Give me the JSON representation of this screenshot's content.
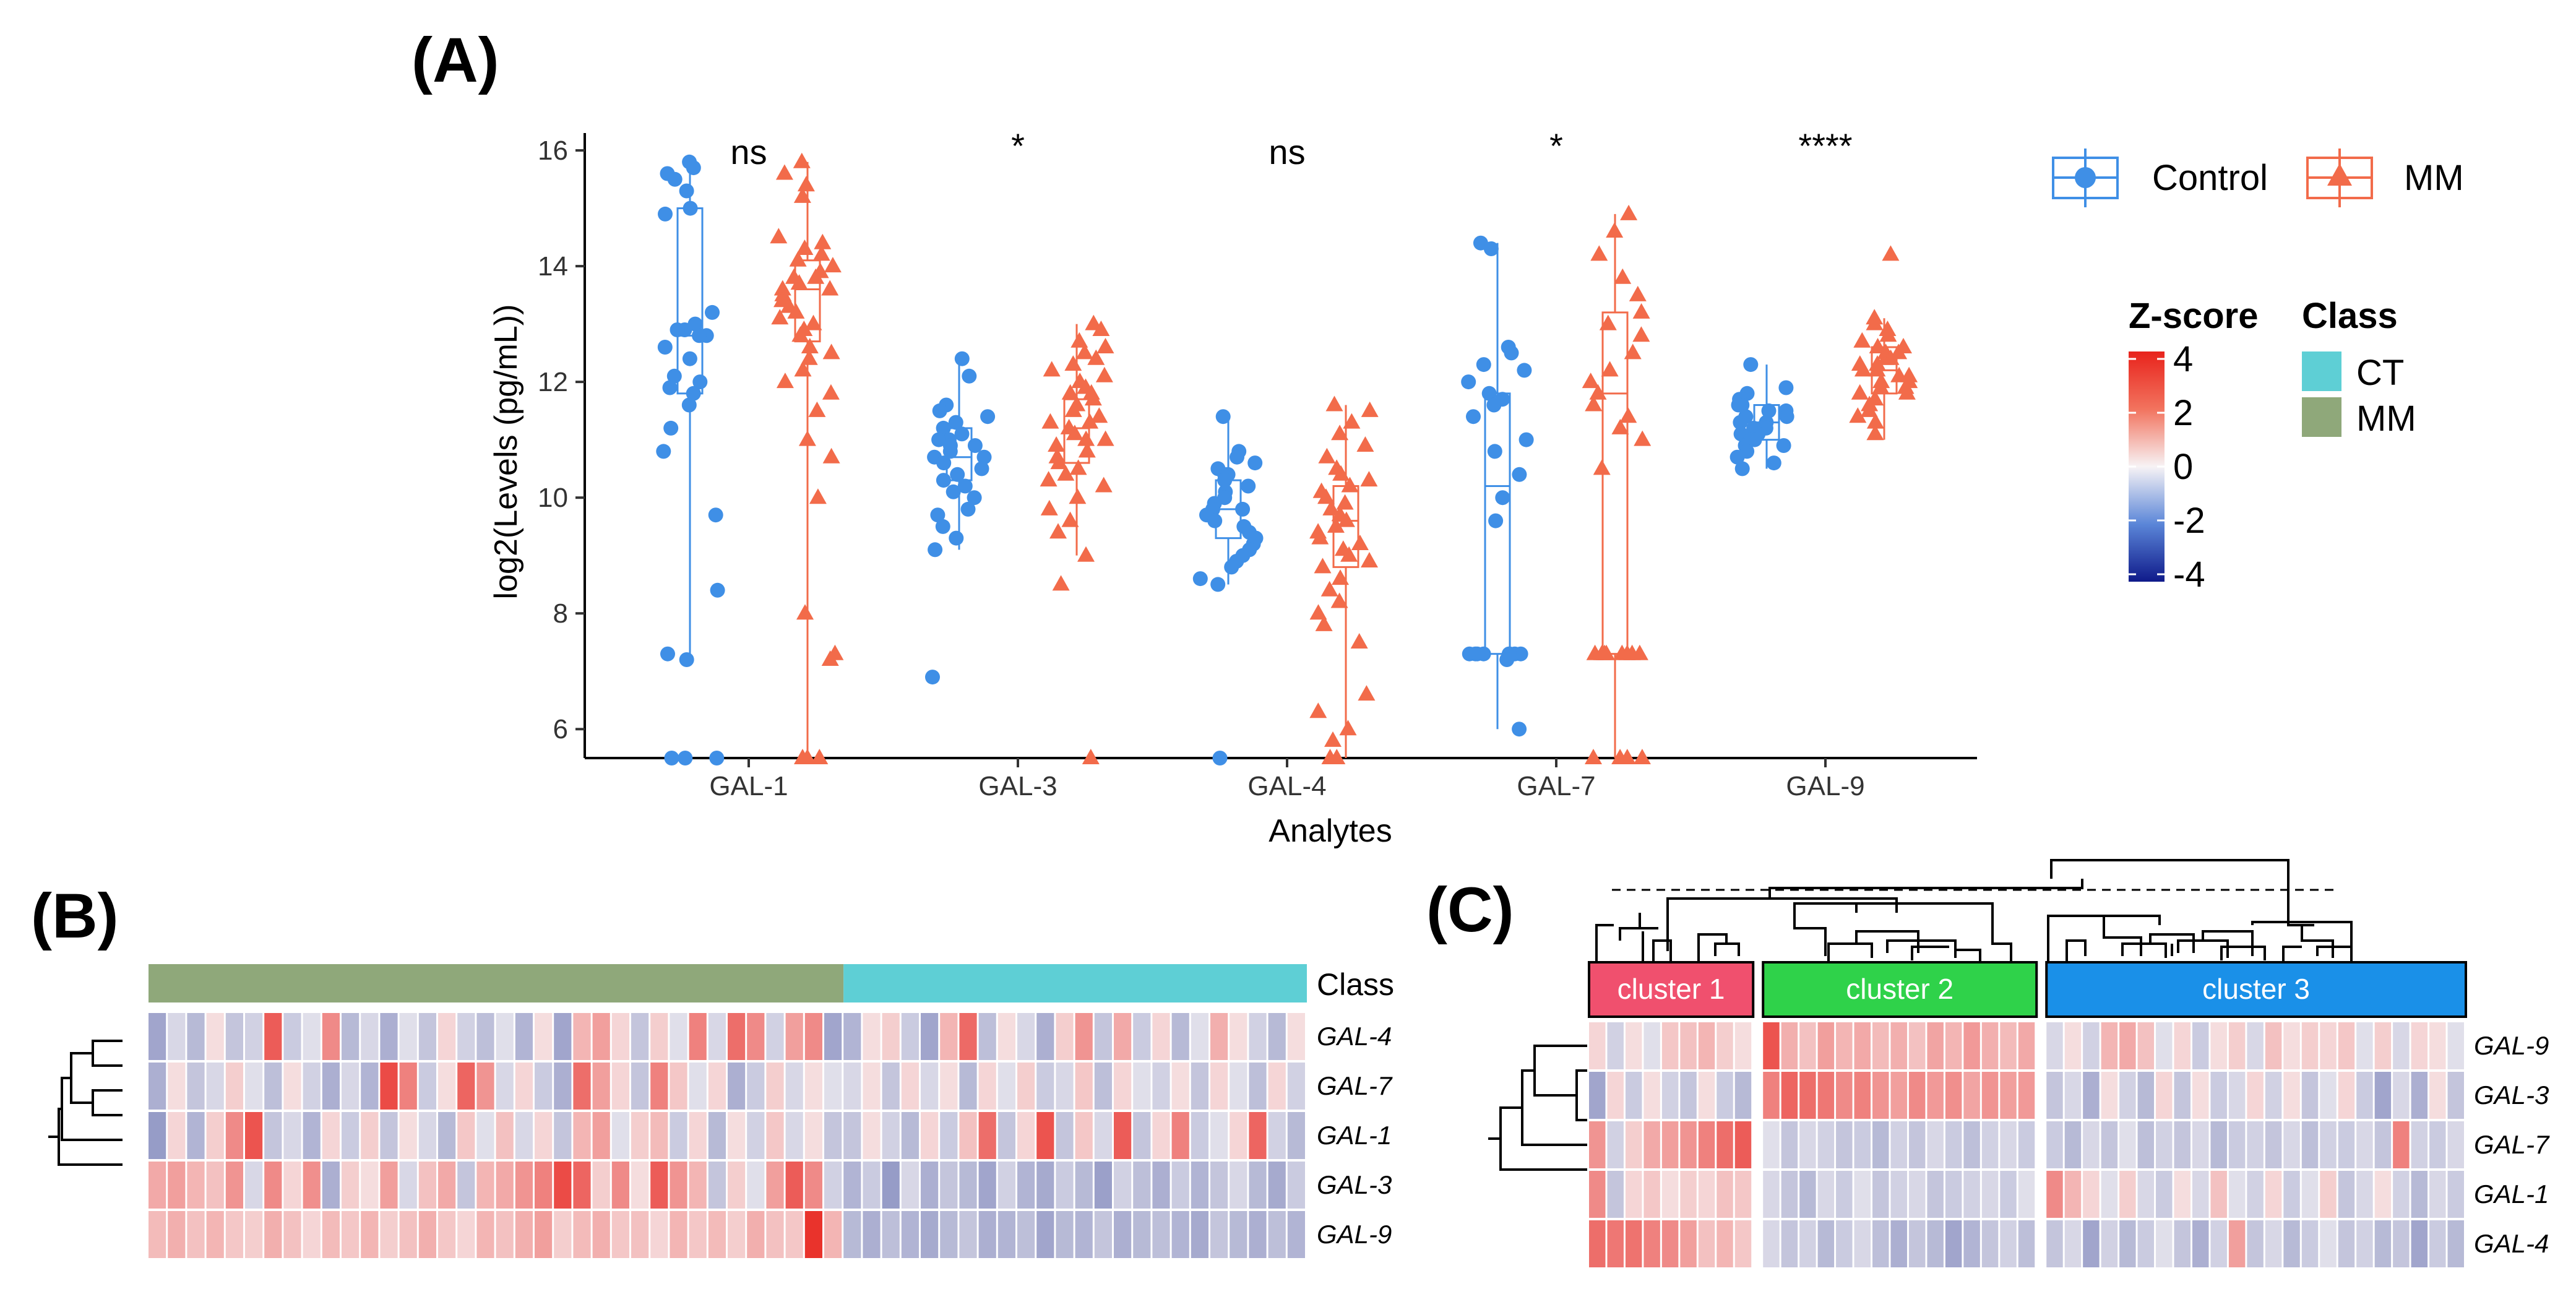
{
  "colors": {
    "control": "#3f8fe6",
    "mm": "#f26b4a",
    "ct_class": "#5ecfd5",
    "mm_class": "#8fa87a",
    "cluster1": "#f0506e",
    "cluster2": "#2fd24a",
    "cluster3": "#1a90e8",
    "heat_low": "#22338f",
    "heat_mid": "#f7f3f5",
    "heat_high": "#e8231c"
  },
  "panels": {
    "a": "(A)",
    "b": "(B)",
    "c": "(C)"
  },
  "chart_data": [
    {
      "id": "A",
      "type": "box-scatter",
      "xlabel": "Analytes",
      "ylabel": "log2(Levels (pg/mL))",
      "ylim": [
        5.5,
        16.3
      ],
      "yticks": [
        "6",
        "8",
        "10",
        "12",
        "14",
        "16"
      ],
      "categories": [
        "GAL-1",
        "GAL-3",
        "GAL-4",
        "GAL-7",
        "GAL-9"
      ],
      "significance": [
        "ns",
        "*",
        "ns",
        "*",
        "****"
      ],
      "legend": {
        "control_label": "Control",
        "mm_label": "MM"
      },
      "boxes": {
        "control": [
          {
            "min": 7.2,
            "q1": 11.8,
            "median": 12.8,
            "q3": 15.0,
            "max": 15.8
          },
          {
            "min": 9.1,
            "q1": 10.3,
            "median": 10.7,
            "q3": 11.2,
            "max": 12.4
          },
          {
            "min": 8.5,
            "q1": 9.3,
            "median": 9.8,
            "q3": 10.3,
            "max": 11.4
          },
          {
            "min": 6.0,
            "q1": 7.3,
            "median": 10.2,
            "q3": 11.8,
            "max": 14.4
          },
          {
            "min": 10.5,
            "q1": 11.0,
            "median": 11.3,
            "q3": 11.6,
            "max": 12.3
          }
        ],
        "mm": [
          {
            "min": 5.5,
            "q1": 12.7,
            "median": 13.6,
            "q3": 14.1,
            "max": 15.8
          },
          {
            "min": 9.0,
            "q1": 10.6,
            "median": 11.2,
            "q3": 11.7,
            "max": 13.0
          },
          {
            "min": 5.5,
            "q1": 8.8,
            "median": 9.6,
            "q3": 10.2,
            "max": 11.6
          },
          {
            "min": 5.5,
            "q1": 7.3,
            "median": 11.8,
            "q3": 13.2,
            "max": 14.9
          },
          {
            "min": 11.0,
            "q1": 11.8,
            "median": 12.2,
            "q3": 12.6,
            "max": 13.1
          }
        ]
      },
      "points": {
        "control": [
          [
            15.8,
            15.7,
            15.6,
            15.5,
            15.3,
            15.0,
            14.9,
            13.2,
            13.0,
            12.9,
            12.9,
            12.8,
            12.8,
            12.6,
            12.4,
            12.1,
            12.0,
            11.9,
            11.8,
            11.6,
            11.2,
            10.8,
            9.7,
            8.4,
            7.3,
            7.2,
            5.5,
            5.5,
            5.5
          ],
          [
            12.4,
            12.1,
            11.6,
            11.5,
            11.4,
            11.3,
            11.2,
            11.1,
            11.0,
            11.0,
            10.9,
            10.9,
            10.8,
            10.7,
            10.7,
            10.6,
            10.5,
            10.4,
            10.3,
            10.2,
            10.1,
            10.0,
            9.8,
            9.7,
            9.5,
            9.3,
            9.1,
            6.9
          ],
          [
            11.4,
            10.8,
            10.7,
            10.6,
            10.5,
            10.4,
            10.4,
            10.3,
            10.2,
            10.1,
            10.0,
            9.9,
            9.8,
            9.8,
            9.7,
            9.6,
            9.5,
            9.4,
            9.3,
            9.2,
            9.1,
            9.0,
            8.9,
            8.8,
            8.6,
            8.5,
            5.5
          ],
          [
            14.4,
            14.3,
            12.6,
            12.5,
            12.3,
            12.2,
            12.0,
            11.8,
            11.7,
            11.6,
            11.4,
            11.0,
            10.8,
            10.4,
            10.0,
            9.6,
            7.3,
            7.3,
            7.3,
            7.3,
            7.3,
            7.3,
            7.3,
            7.3,
            7.2,
            6.0
          ],
          [
            12.3,
            11.9,
            11.8,
            11.7,
            11.6,
            11.6,
            11.5,
            11.5,
            11.4,
            11.4,
            11.3,
            11.3,
            11.2,
            11.2,
            11.1,
            11.1,
            11.0,
            11.0,
            10.9,
            10.9,
            10.8,
            10.7,
            10.6,
            10.5
          ]
        ],
        "mm": [
          [
            15.8,
            15.6,
            15.4,
            15.2,
            14.5,
            14.4,
            14.3,
            14.2,
            14.1,
            14.0,
            13.9,
            13.8,
            13.8,
            13.7,
            13.6,
            13.6,
            13.5,
            13.4,
            13.3,
            13.2,
            13.1,
            13.0,
            12.9,
            12.8,
            12.6,
            12.5,
            12.4,
            12.2,
            12.0,
            11.8,
            11.5,
            11.0,
            10.7,
            10.0,
            8.0,
            7.3,
            7.2,
            5.5,
            5.5,
            5.5
          ],
          [
            13.0,
            12.9,
            12.7,
            12.6,
            12.5,
            12.4,
            12.3,
            12.2,
            12.1,
            12.0,
            11.9,
            11.8,
            11.8,
            11.7,
            11.6,
            11.5,
            11.4,
            11.3,
            11.3,
            11.2,
            11.1,
            11.0,
            11.0,
            10.9,
            10.8,
            10.7,
            10.6,
            10.5,
            10.4,
            10.3,
            10.2,
            10.0,
            9.8,
            9.6,
            9.4,
            9.0,
            8.5,
            5.5
          ],
          [
            11.6,
            11.5,
            11.3,
            11.1,
            10.9,
            10.7,
            10.5,
            10.4,
            10.3,
            10.2,
            10.1,
            10.0,
            9.9,
            9.8,
            9.7,
            9.6,
            9.5,
            9.4,
            9.3,
            9.2,
            9.1,
            9.0,
            8.9,
            8.8,
            8.6,
            8.4,
            8.2,
            8.0,
            7.8,
            7.5,
            6.6,
            6.3,
            6.0,
            5.8,
            5.5,
            5.5
          ],
          [
            14.9,
            14.6,
            14.2,
            13.8,
            13.5,
            13.2,
            13.0,
            12.8,
            12.5,
            12.2,
            12.0,
            11.8,
            11.6,
            11.4,
            11.2,
            11.0,
            10.5,
            7.3,
            7.3,
            7.3,
            7.3,
            7.3,
            7.3,
            7.3,
            7.3,
            5.5,
            5.5,
            5.5,
            5.5
          ],
          [
            14.2,
            13.1,
            13.0,
            12.9,
            12.8,
            12.7,
            12.6,
            12.6,
            12.5,
            12.5,
            12.4,
            12.4,
            12.3,
            12.3,
            12.2,
            12.2,
            12.1,
            12.1,
            12.0,
            12.0,
            11.9,
            11.9,
            11.8,
            11.8,
            11.7,
            11.6,
            11.5,
            11.4,
            11.3,
            11.1
          ]
        ]
      }
    },
    {
      "id": "B",
      "type": "heatmap",
      "rows": [
        "GAL-4",
        "GAL-7",
        "GAL-1",
        "GAL-3",
        "GAL-9"
      ],
      "class_row_label": "Class",
      "class_groups": [
        {
          "label": "MM",
          "count": 36
        },
        {
          "label": "CT",
          "count": 24
        }
      ],
      "values": [
        [
          -1.2,
          -0.3,
          -0.8,
          0.2,
          -0.6,
          -0.4,
          2.6,
          -0.5,
          -0.2,
          1.6,
          -0.8,
          -0.3,
          -1.0,
          -0.2,
          -0.6,
          0.3,
          -0.4,
          -0.7,
          -0.2,
          -0.9,
          0.2,
          -1.2,
          0.8,
          1.2,
          0.3,
          -0.6,
          0.4,
          -0.2,
          1.8,
          -0.3,
          2.2,
          1.6,
          -0.4,
          1.2,
          1.6,
          -1.2,
          -0.9,
          0.2,
          0.4,
          -0.5,
          -1.2,
          0.8,
          2.3,
          -0.7,
          0.2,
          -0.3,
          -1.0,
          0.4,
          1.4,
          -0.6,
          1.0,
          -0.5,
          0.3,
          -0.8,
          -0.2,
          0.9,
          0.2,
          -0.4,
          -0.8,
          0.2
        ],
        [
          -1.0,
          0.2,
          -0.6,
          -0.3,
          0.4,
          -0.2,
          -0.7,
          0.2,
          -0.4,
          -1.0,
          -0.3,
          -0.9,
          3.0,
          1.8,
          -0.5,
          0.2,
          2.4,
          1.4,
          -0.3,
          0.3,
          -0.5,
          -1.0,
          2.2,
          1.2,
          0.3,
          -0.6,
          1.8,
          0.5,
          -0.2,
          0.3,
          -1.0,
          -0.5,
          0.4,
          -0.3,
          0.2,
          -0.2,
          -0.3,
          0.2,
          -0.6,
          0.3,
          -0.3,
          0.2,
          -0.8,
          0.3,
          -0.2,
          0.4,
          -0.5,
          -0.3,
          0.5,
          -0.7,
          0.3,
          -0.2,
          -0.4,
          0.2,
          -0.6,
          0.3,
          -0.2,
          -0.7,
          0.3,
          -0.4
        ],
        [
          -1.4,
          0.3,
          -0.9,
          0.4,
          1.6,
          2.8,
          -0.6,
          -0.3,
          -0.9,
          0.3,
          -0.5,
          0.4,
          -0.6,
          0.2,
          -0.3,
          -0.8,
          0.5,
          -0.2,
          0.6,
          -0.3,
          0.3,
          -0.6,
          0.8,
          1.2,
          -0.2,
          0.4,
          0.7,
          -0.5,
          0.3,
          -0.8,
          0.2,
          -0.4,
          0.5,
          -0.3,
          0.2,
          -0.6,
          -0.6,
          0.2,
          -0.4,
          -0.8,
          0.3,
          -0.5,
          0.6,
          2.2,
          -0.6,
          0.3,
          2.8,
          -0.6,
          0.5,
          -0.3,
          2.6,
          -0.6,
          0.3,
          1.8,
          -0.5,
          -0.2,
          0.3,
          2.4,
          -0.4,
          -0.8
        ],
        [
          1.0,
          1.2,
          0.8,
          0.6,
          1.4,
          -0.3,
          1.6,
          0.3,
          1.5,
          -1.0,
          0.4,
          0.2,
          1.2,
          -0.3,
          0.6,
          1.0,
          -0.6,
          0.8,
          1.0,
          1.4,
          1.8,
          3.0,
          2.4,
          0.4,
          1.6,
          0.2,
          2.6,
          1.4,
          0.8,
          -0.6,
          0.4,
          -0.2,
          1.2,
          2.6,
          1.6,
          -0.4,
          -0.9,
          -0.5,
          -1.4,
          -0.3,
          -1.0,
          -0.6,
          -0.8,
          -1.2,
          -0.4,
          -0.9,
          -1.1,
          -0.5,
          -0.8,
          -1.3,
          -0.4,
          -0.7,
          -1.0,
          -0.5,
          -0.9,
          -0.6,
          -0.3,
          -0.8,
          -1.1,
          -0.5
        ],
        [
          0.7,
          0.9,
          0.6,
          0.8,
          0.5,
          0.4,
          0.9,
          0.6,
          0.3,
          0.7,
          0.5,
          0.8,
          0.4,
          0.6,
          0.9,
          0.5,
          0.3,
          0.8,
          0.6,
          0.9,
          1.2,
          0.4,
          0.7,
          0.9,
          0.5,
          0.6,
          0.3,
          0.8,
          0.5,
          0.7,
          0.4,
          0.9,
          0.6,
          0.5,
          3.6,
          0.8,
          -0.8,
          -1.0,
          -0.7,
          -0.9,
          -1.1,
          -0.8,
          -0.6,
          -1.0,
          -0.9,
          -0.7,
          -1.2,
          -0.8,
          -0.9,
          -0.6,
          -1.0,
          -0.8,
          -0.7,
          -0.9,
          -1.1,
          -0.6,
          -0.8,
          -1.0,
          -0.7,
          -0.9
        ]
      ]
    },
    {
      "id": "C",
      "type": "heatmap",
      "rows": [
        "GAL-9",
        "GAL-3",
        "GAL-7",
        "GAL-1",
        "GAL-4"
      ],
      "clusters": [
        {
          "label": "cluster 1",
          "count": 9
        },
        {
          "label": "cluster 2",
          "count": 15
        },
        {
          "label": "cluster 3",
          "count": 23
        }
      ],
      "values": [
        [
          0.3,
          -0.4,
          0.2,
          -0.2,
          0.5,
          0.6,
          0.8,
          0.4,
          0.2,
          2.8,
          0.9,
          0.6,
          1.2,
          0.8,
          1.0,
          0.7,
          0.9,
          0.6,
          1.1,
          0.8,
          1.3,
          0.9,
          0.7,
          1.0,
          -0.3,
          0.2,
          -0.4,
          0.8,
          1.0,
          0.6,
          -0.2,
          0.3,
          -0.5,
          0.2,
          0.4,
          -0.3,
          0.6,
          0.2,
          0.4,
          0.3,
          0.5,
          -0.2,
          0.4,
          -0.3,
          0.3,
          0.2,
          -0.2
        ],
        [
          -1.2,
          0.3,
          -0.5,
          0.2,
          -0.4,
          -0.6,
          0.2,
          -0.5,
          -0.8,
          1.8,
          2.4,
          2.2,
          2.0,
          1.6,
          1.8,
          1.4,
          1.2,
          1.6,
          1.3,
          1.5,
          1.1,
          1.4,
          1.2,
          1.3,
          -0.6,
          -0.3,
          -1.0,
          0.2,
          -0.4,
          -0.8,
          0.3,
          -0.6,
          0.2,
          -0.5,
          -0.3,
          0.3,
          -0.4,
          0.2,
          -0.6,
          -0.2,
          0.3,
          -0.5,
          -1.2,
          -0.3,
          -1.0,
          0.2,
          -0.6
        ],
        [
          1.4,
          -0.4,
          0.4,
          1.0,
          1.2,
          1.4,
          1.8,
          2.2,
          2.6,
          -0.2,
          -0.6,
          -0.3,
          -0.4,
          -0.6,
          -0.5,
          -0.8,
          -0.4,
          -0.6,
          -0.3,
          -0.5,
          -0.7,
          -0.4,
          -0.3,
          -0.5,
          -0.5,
          -0.8,
          -0.3,
          -0.6,
          -0.2,
          -0.7,
          -0.4,
          -0.6,
          -0.3,
          -0.8,
          -0.5,
          -0.4,
          -0.6,
          -0.3,
          -0.7,
          -0.4,
          -0.5,
          -0.3,
          -0.6,
          1.8,
          -0.4,
          -0.5,
          -0.3
        ],
        [
          1.6,
          -0.6,
          0.3,
          0.5,
          0.2,
          0.4,
          0.3,
          0.6,
          0.5,
          -0.3,
          -0.6,
          -0.8,
          -0.3,
          -0.5,
          -0.2,
          -0.6,
          -0.4,
          -0.3,
          -0.6,
          -0.5,
          -0.4,
          -0.3,
          -0.5,
          -0.2,
          1.6,
          0.8,
          0.3,
          -0.2,
          0.4,
          -0.3,
          -0.5,
          0.2,
          -0.3,
          0.6,
          -0.2,
          -0.4,
          0.3,
          -0.5,
          -0.2,
          0.4,
          -0.6,
          -0.3,
          0.2,
          -0.4,
          -0.8,
          -0.3,
          -0.5
        ],
        [
          2.2,
          2.0,
          2.1,
          1.8,
          1.6,
          1.2,
          0.6,
          0.8,
          0.5,
          -0.3,
          -0.6,
          -0.4,
          -0.8,
          -0.5,
          -0.3,
          -0.7,
          -1.0,
          -0.6,
          -0.8,
          -1.2,
          -0.9,
          -0.6,
          -0.4,
          -0.7,
          -0.6,
          -0.3,
          -1.2,
          -0.4,
          -0.8,
          -0.5,
          -0.2,
          -0.6,
          -1.0,
          -0.4,
          1.2,
          -0.6,
          -0.3,
          -0.8,
          -0.5,
          -0.2,
          -0.6,
          -0.4,
          -0.8,
          -0.6,
          -1.2,
          -0.5,
          -0.8
        ]
      ]
    }
  ],
  "legend_heat": {
    "title": "Z-score",
    "ticks": [
      "4",
      "2",
      "0",
      "-2",
      "-4"
    ]
  },
  "legend_class": {
    "title": "Class",
    "items": [
      "CT",
      "MM"
    ]
  }
}
